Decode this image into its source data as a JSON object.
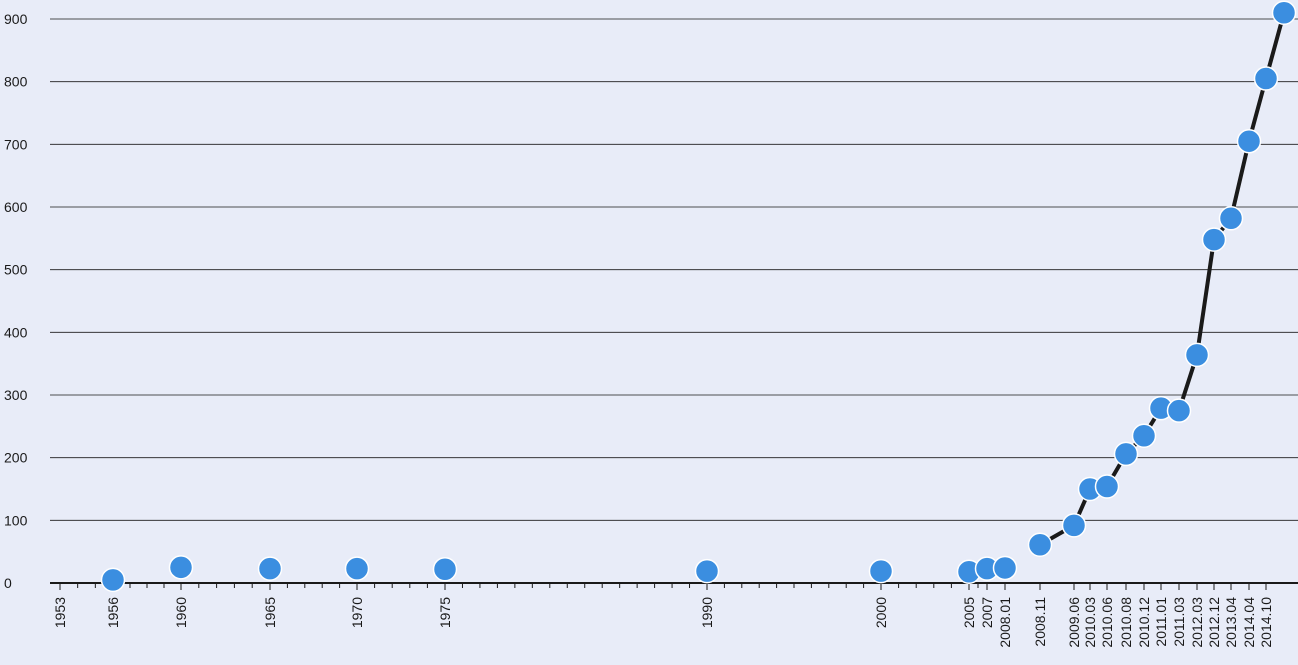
{
  "colors": {
    "background": "#e8ecf8",
    "gridline": "#1a1a1a",
    "line": "#1a1a1a",
    "marker": "#3b8ee0",
    "text": "#1a1a1a"
  },
  "chart_data": {
    "type": "line",
    "title": "",
    "xlabel": "",
    "ylabel": "",
    "ylim": [
      0,
      900
    ],
    "yticks": [
      0,
      100,
      200,
      300,
      400,
      500,
      600,
      700,
      800,
      900
    ],
    "grid": true,
    "x_axis_scale": "time (decimal year)",
    "x_tick_labels": [
      {
        "label": "1953",
        "x": 1953
      },
      {
        "label": "1956",
        "x": 1956
      },
      {
        "label": "1960",
        "x": 1960
      },
      {
        "label": "1965",
        "x": 1965
      },
      {
        "label": "1970",
        "x": 1970
      },
      {
        "label": "1975",
        "x": 1975
      },
      {
        "label": "1990",
        "x": 1990
      },
      {
        "label": "2000",
        "x": 2000
      },
      {
        "label": "2005",
        "x": 2005
      },
      {
        "label": "2007",
        "x": 2007
      },
      {
        "label": "2008.01",
        "x": 2008.0
      },
      {
        "label": "2008.11",
        "x": 2008.83
      },
      {
        "label": "2009.06",
        "x": 2009.42
      },
      {
        "label": "2010.03",
        "x": 2010.17
      },
      {
        "label": "2010.06",
        "x": 2010.42
      },
      {
        "label": "2010.08",
        "x": 2010.58
      },
      {
        "label": "2010.12",
        "x": 2010.92
      },
      {
        "label": "2011.01",
        "x": 2011.0
      },
      {
        "label": "2011.03",
        "x": 2011.17
      },
      {
        "label": "2012.03",
        "x": 2012.17
      },
      {
        "label": "2012.12",
        "x": 2012.92
      },
      {
        "label": "2013.04",
        "x": 2013.25
      },
      {
        "label": "2014.04",
        "x": 2014.25
      },
      {
        "label": "2014.10",
        "x": 2014.75
      }
    ],
    "series": [
      {
        "points": [
          {
            "x": 1956,
            "y": 5
          },
          {
            "x": 1960,
            "y": 25
          },
          {
            "x": 1965,
            "y": 23
          },
          {
            "x": 1970,
            "y": 23
          },
          {
            "x": 1975,
            "y": 22
          },
          {
            "x": 1990,
            "y": 19
          },
          {
            "x": 2000,
            "y": 19
          },
          {
            "x": 2005,
            "y": 18
          },
          {
            "x": 2006,
            "y": 23
          },
          {
            "x": 2007,
            "y": 24
          },
          {
            "x": 2009,
            "y": 61
          },
          {
            "x": 2011,
            "y": 92
          },
          {
            "x": 2012,
            "y": 150
          },
          {
            "x": 2013,
            "y": 154
          },
          {
            "x": 2014,
            "y": 206
          },
          {
            "x": 2015,
            "y": 235
          },
          {
            "x": 2016,
            "y": 279
          },
          {
            "x": 2017,
            "y": 275
          },
          {
            "x": 2018,
            "y": 364
          },
          {
            "x": 2019,
            "y": 548
          },
          {
            "x": 2020,
            "y": 582
          },
          {
            "x": 2021,
            "y": 705
          },
          {
            "x": 2022,
            "y": 805
          },
          {
            "x": 2023,
            "y": 910
          }
        ],
        "line_from_index": 10
      }
    ]
  }
}
